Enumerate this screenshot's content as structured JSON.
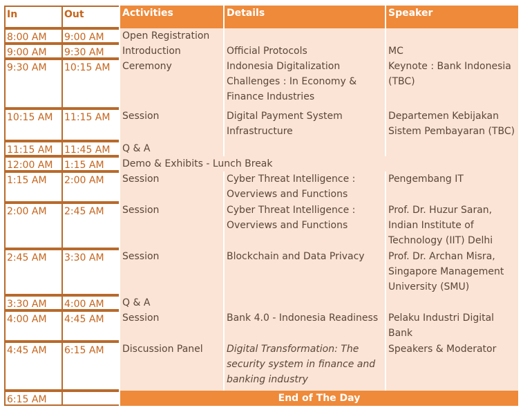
{
  "headers": {
    "in": "In",
    "out": "Out",
    "activities": "Activities",
    "details": "Details",
    "speaker": "Speaker"
  },
  "rows": [
    {
      "in": "8:00 AM",
      "out": "9:00 AM",
      "activity": "Open Registration",
      "details": "",
      "speaker": ""
    },
    {
      "in": "9:00 AM",
      "out": "9:30 AM",
      "activity": "Introduction",
      "details": "Official Protocols",
      "speaker": "MC"
    },
    {
      "in": "9:30 AM",
      "out": "10:15 AM",
      "activity": "Ceremony",
      "details": "Indonesia Digitalization\nChallenges : In  Economy &\nFinance Industries",
      "speaker": "Keynote : Bank Indonesia\n(TBC)"
    },
    {
      "in": "10:15 AM",
      "out": "11:15 AM",
      "activity": "Session",
      "details": "Digital Payment System\nInfrastructure",
      "speaker": "Departemen Kebijakan\nSistem Pembayaran (TBC)"
    },
    {
      "in": "11:15 AM",
      "out": "11:45 AM",
      "activity": "Q & A",
      "details": "",
      "speaker": ""
    },
    {
      "in": "12:00 AM",
      "out": "1:15 AM",
      "activity": "Demo & Exhibits -  Lunch Break",
      "details": "",
      "speaker": "",
      "span": true
    },
    {
      "in": "1:15 AM",
      "out": "2:00 AM",
      "activity": "Session",
      "details": "Cyber Threat Intelligence :\nOverviews and Functions",
      "speaker": "Pengembang IT"
    },
    {
      "in": "2:00 AM",
      "out": "2:45 AM",
      "activity": "Session",
      "details": "Cyber Threat Intelligence :\nOverviews and Functions",
      "speaker": "Prof. Dr. Huzur Saran,\nIndian Institute of\nTechnology (IIT) Delhi"
    },
    {
      "in": "2:45 AM",
      "out": "3:30 AM",
      "activity": "Session",
      "details": "Blockchain and Data Privacy",
      "speaker": "Prof. Dr. Archan Misra,\nSingapore Management\nUniversity (SMU)"
    },
    {
      "in": "3:30 AM",
      "out": "4:00 AM",
      "activity": "Q & A",
      "details": "",
      "speaker": ""
    },
    {
      "in": "4:00 AM",
      "out": "4:45 AM",
      "activity": "Session",
      "details": "Bank 4.0 - Indonesia Readiness",
      "speaker": "Pelaku Industri Digital Bank"
    },
    {
      "in": "4:45 AM",
      "out": "6:15 AM",
      "activity": "Discussion Panel",
      "details": "Digital Transformation: The\nsecurity system in finance and\nbanking industry",
      "details_italic": true,
      "speaker": "Speakers & Moderator"
    }
  ],
  "end_row": {
    "in": "6:15 AM",
    "out": "",
    "label": "End of The Day"
  },
  "colors": {
    "header_orange": "#ee8a3a",
    "row_peach": "#fbe4d5",
    "time_border": "#b86a2c",
    "time_text": "#c5651d"
  }
}
